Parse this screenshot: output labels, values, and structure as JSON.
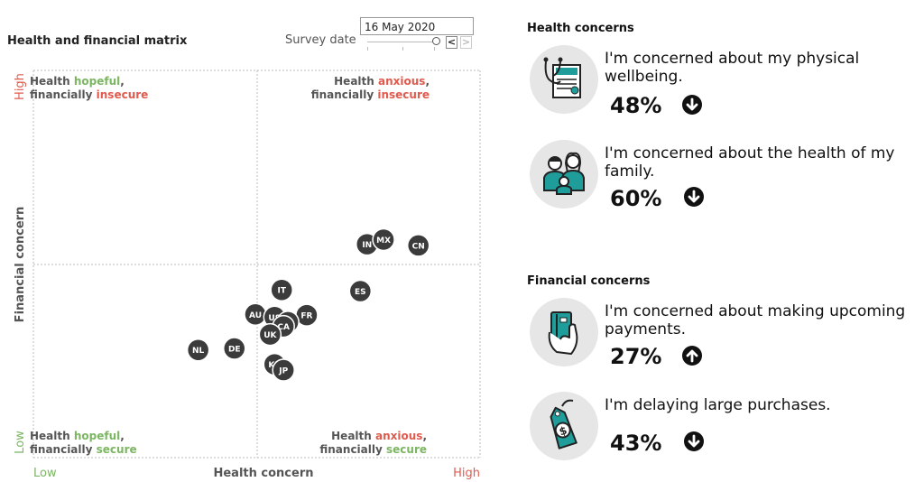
{
  "matrix": {
    "title": "Health and financial matrix",
    "survey_label": "Survey date",
    "survey_date": "16 May 2020",
    "prev_button": "<",
    "next_button": ">"
  },
  "chart_data": {
    "type": "scatter",
    "xlabel": "Health concern",
    "ylabel": "Financial concern",
    "x_low_label": "Low",
    "x_high_label": "High",
    "y_low_label": "Low",
    "y_high_label": "High",
    "xlim": [
      0,
      100
    ],
    "ylim": [
      0,
      100
    ],
    "grid": "dashed quadrant lines at 50",
    "quadrants": {
      "top_left": [
        "Health ",
        "hopeful",
        ",",
        "financially ",
        "insecure"
      ],
      "top_right": [
        "Health ",
        "anxious",
        ",",
        "financially ",
        "insecure"
      ],
      "bottom_left": [
        "Health ",
        "hopeful",
        ",",
        "financially ",
        "secure"
      ],
      "bottom_right": [
        "Health ",
        "anxious",
        ",",
        "financially ",
        "secure"
      ]
    },
    "points": [
      {
        "label": "IN",
        "x": 74.7,
        "y": 55.1
      },
      {
        "label": "MX",
        "x": 78.4,
        "y": 56.3
      },
      {
        "label": "CN",
        "x": 86.2,
        "y": 54.8
      },
      {
        "label": "IT",
        "x": 55.6,
        "y": 43.3
      },
      {
        "label": "ES",
        "x": 73.2,
        "y": 43.0
      },
      {
        "label": "FR",
        "x": 61.2,
        "y": 36.8
      },
      {
        "label": "AU",
        "x": 49.7,
        "y": 37.0
      },
      {
        "label": "US",
        "x": 54.0,
        "y": 36.3
      },
      {
        "label": "IE",
        "x": 57.0,
        "y": 35.0
      },
      {
        "label": "CA",
        "x": 56.0,
        "y": 33.9
      },
      {
        "label": "UK",
        "x": 53.0,
        "y": 31.8
      },
      {
        "label": "DE",
        "x": 45.0,
        "y": 28.2
      },
      {
        "label": "NL",
        "x": 36.9,
        "y": 27.8
      },
      {
        "label": "KR",
        "x": 54.0,
        "y": 24.1
      },
      {
        "label": "JP",
        "x": 56.0,
        "y": 22.6
      }
    ]
  },
  "health": {
    "heading": "Health concerns",
    "items": [
      {
        "text": "I'm concerned about my physical wellbeing.",
        "pct": "48%",
        "trend": "down",
        "icon": "medical-report-icon"
      },
      {
        "text": "I'm concerned about the health of my family.",
        "pct": "60%",
        "trend": "down",
        "icon": "family-icon"
      }
    ]
  },
  "financial": {
    "heading": "Financial concerns",
    "items": [
      {
        "text": "I'm concerned about making upcoming payments.",
        "pct": "27%",
        "trend": "up",
        "icon": "credit-card-hand-icon"
      },
      {
        "text": "I'm delaying large purchases.",
        "pct": "43%",
        "trend": "down",
        "icon": "price-tag-icon"
      }
    ]
  },
  "colors": {
    "high": "#e05a4e",
    "low": "#7cb663",
    "dot": "#3b3b3b",
    "icon_teal": "#1f9d9b",
    "icon_bg": "#e6e6e6"
  }
}
